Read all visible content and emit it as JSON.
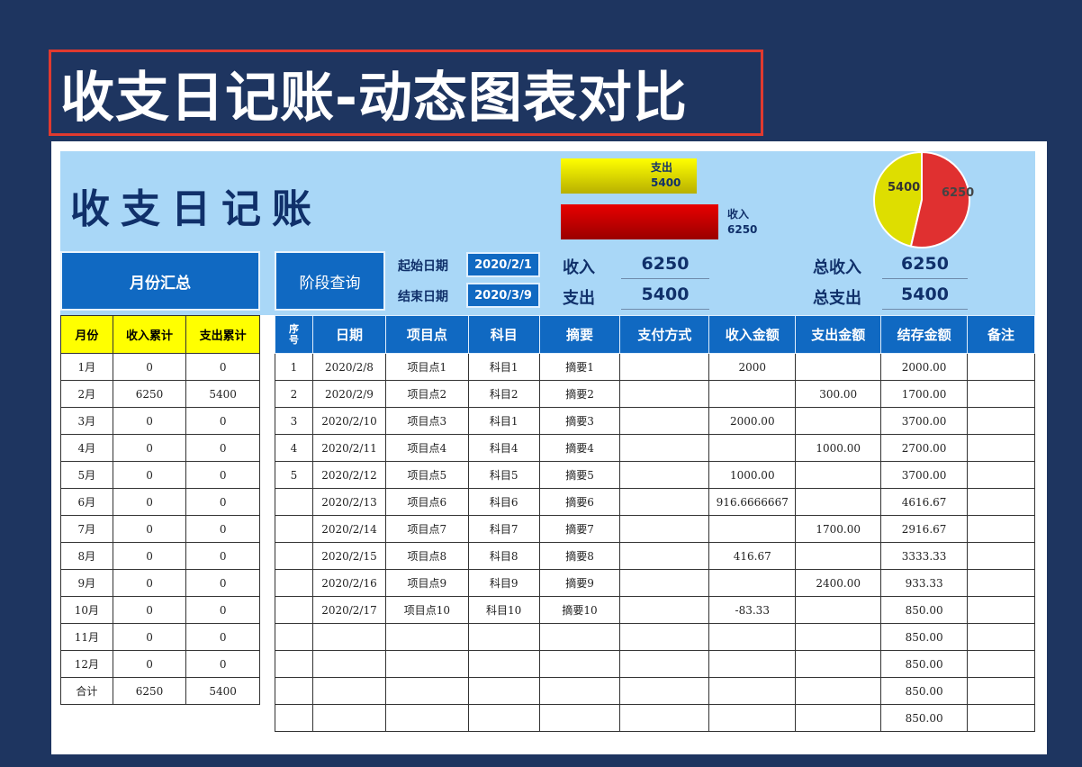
{
  "banner_title": "收支日记账-动态图表对比",
  "app_title": "收支日记账",
  "buttons": {
    "monthly": "月份汇总",
    "period": "阶段查询"
  },
  "query": {
    "start_label": "起始日期",
    "start_value": "2020/2/1",
    "end_label": "结束日期",
    "end_value": "2020/3/9"
  },
  "period_summary": {
    "income_label": "收入",
    "income_value": "6250",
    "expense_label": "支出",
    "expense_value": "5400"
  },
  "totals": {
    "income_label": "总收入",
    "income_value": "6250",
    "expense_label": "总支出",
    "expense_value": "5400"
  },
  "chart_data": {
    "type": "bar+pie",
    "categories": [
      "支出",
      "收入"
    ],
    "values": [
      5400,
      6250
    ],
    "labels": [
      "5400",
      "6250"
    ],
    "colors": {
      "支出": "#e6e600",
      "收入": "#d40000"
    },
    "pie_labels": [
      "5400",
      "6250"
    ]
  },
  "monthly": {
    "headers": [
      "月份",
      "收入累计",
      "支出累计"
    ],
    "rows": [
      [
        "1月",
        "0",
        "0"
      ],
      [
        "2月",
        "6250",
        "5400"
      ],
      [
        "3月",
        "0",
        "0"
      ],
      [
        "4月",
        "0",
        "0"
      ],
      [
        "5月",
        "0",
        "0"
      ],
      [
        "6月",
        "0",
        "0"
      ],
      [
        "7月",
        "0",
        "0"
      ],
      [
        "8月",
        "0",
        "0"
      ],
      [
        "9月",
        "0",
        "0"
      ],
      [
        "10月",
        "0",
        "0"
      ],
      [
        "11月",
        "0",
        "0"
      ],
      [
        "12月",
        "0",
        "0"
      ],
      [
        "合计",
        "6250",
        "5400"
      ]
    ]
  },
  "ledger": {
    "headers": [
      "序号",
      "日期",
      "项目点",
      "科目",
      "摘要",
      "支付方式",
      "收入金额",
      "支出金额",
      "结存金额",
      "备注"
    ],
    "rows": [
      [
        "1",
        "2020/2/8",
        "项目点1",
        "科目1",
        "摘要1",
        "",
        "2000",
        "",
        "2000.00",
        ""
      ],
      [
        "2",
        "2020/2/9",
        "项目点2",
        "科目2",
        "摘要2",
        "",
        "",
        "300.00",
        "1700.00",
        ""
      ],
      [
        "3",
        "2020/2/10",
        "项目点3",
        "科目1",
        "摘要3",
        "",
        "2000.00",
        "",
        "3700.00",
        ""
      ],
      [
        "4",
        "2020/2/11",
        "项目点4",
        "科目4",
        "摘要4",
        "",
        "",
        "1000.00",
        "2700.00",
        ""
      ],
      [
        "5",
        "2020/2/12",
        "项目点5",
        "科目5",
        "摘要5",
        "",
        "1000.00",
        "",
        "3700.00",
        ""
      ],
      [
        "",
        "2020/2/13",
        "项目点6",
        "科目6",
        "摘要6",
        "",
        "916.6666667",
        "",
        "4616.67",
        ""
      ],
      [
        "",
        "2020/2/14",
        "项目点7",
        "科目7",
        "摘要7",
        "",
        "",
        "1700.00",
        "2916.67",
        ""
      ],
      [
        "",
        "2020/2/15",
        "项目点8",
        "科目8",
        "摘要8",
        "",
        "416.67",
        "",
        "3333.33",
        ""
      ],
      [
        "",
        "2020/2/16",
        "项目点9",
        "科目9",
        "摘要9",
        "",
        "",
        "2400.00",
        "933.33",
        ""
      ],
      [
        "",
        "2020/2/17",
        "项目点10",
        "科目10",
        "摘要10",
        "",
        "-83.33",
        "",
        "850.00",
        ""
      ],
      [
        "",
        "",
        "",
        "",
        "",
        "",
        "",
        "",
        "850.00",
        ""
      ],
      [
        "",
        "",
        "",
        "",
        "",
        "",
        "",
        "",
        "850.00",
        ""
      ],
      [
        "",
        "",
        "",
        "",
        "",
        "",
        "",
        "",
        "850.00",
        ""
      ],
      [
        "",
        "",
        "",
        "",
        "",
        "",
        "",
        "",
        "850.00",
        ""
      ]
    ]
  }
}
